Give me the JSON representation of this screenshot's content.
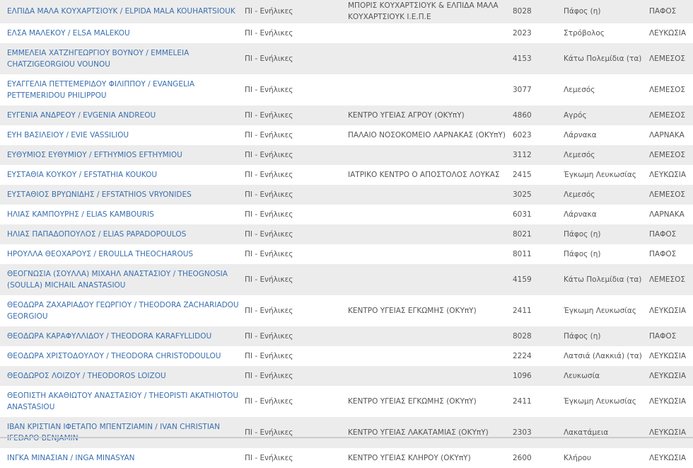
{
  "table": {
    "rows": [
      {
        "name": "ΕΛΠΙΔΑ ΜΑΛΑ ΚΟΥΧΑΡΤΣΙΟΥΚ / ELPIDA MALA KOUHARTSIOUK",
        "category": "ΠΙ - Ενήλικες",
        "facility": "ΜΠΟΡΙΣ ΚΟΥΧΑΡΤΣΙΟΥΚ & ΕΛΠΙΔΑ ΜΑΛΑ ΚΟΥΧΑΡΤΣΙΟΥΚ Ι.Ε.Π.Ε",
        "code": "8028",
        "city": "Πάφος (η)",
        "district": "ΠΑΦΟΣ"
      },
      {
        "name": "ΕΛΣΑ ΜΑΛΕΚΟΥ / ELSA MALEKOU",
        "category": "ΠΙ - Ενήλικες",
        "facility": "",
        "code": "2023",
        "city": "Στρόβολος",
        "district": "ΛΕΥΚΩΣΙΑ"
      },
      {
        "name": "ΕΜΜΕΛΕΙΑ ΧΑΤΖΗΓΕΩΡΓΙΟΥ ΒΟΥΝΟΥ / EMMELEIA CHATZIGEORGIOU VOUNOU",
        "category": "ΠΙ - Ενήλικες",
        "facility": "",
        "code": "4153",
        "city": "Κάτω Πολεμίδια (τα)",
        "district": "ΛΕΜΕΣΟΣ"
      },
      {
        "name": "ΕΥΑΓΓΕΛΙΑ ΠΕΤΤΕΜΕΡΙΔΟΥ ΦΙΛΙΠΠΟΥ / EVANGELIA PETTEMERIDOU PHILIPPOU",
        "category": "ΠΙ - Ενήλικες",
        "facility": "",
        "code": "3077",
        "city": "Λεμεσός",
        "district": "ΛΕΜΕΣΟΣ"
      },
      {
        "name": "ΕΥΓΕΝΙΑ ΑΝΔΡΕΟΥ / EVGENIA ANDREOU",
        "category": "ΠΙ - Ενήλικες",
        "facility": "ΚΕΝΤΡΟ ΥΓΕΙΑΣ ΑΓΡΟΥ (ΟΚΥπΥ)",
        "code": "4860",
        "city": "Αγρός",
        "district": "ΛΕΜΕΣΟΣ"
      },
      {
        "name": "ΕΥΗ ΒΑΣΙΛΕΙΟΥ / EVIE VASSILIOU",
        "category": "ΠΙ - Ενήλικες",
        "facility": "ΠΑΛΑΙΟ ΝΟΣΟΚΟΜΕΙΟ ΛΑΡΝΑΚΑΣ (ΟΚΥπΥ)",
        "code": "6023",
        "city": "Λάρνακα",
        "district": "ΛΑΡΝΑΚΑ"
      },
      {
        "name": "ΕΥΘΥΜΙΟΣ ΕΥΘΥΜΙΟΥ / EFTHYMIOS EFTHYMIOU",
        "category": "ΠΙ - Ενήλικες",
        "facility": "",
        "code": "3112",
        "city": "Λεμεσός",
        "district": "ΛΕΜΕΣΟΣ"
      },
      {
        "name": "ΕΥΣΤΑΘΙΑ ΚΟΥΚΟΥ / EFSTATHIA KOUKOU",
        "category": "ΠΙ - Ενήλικες",
        "facility": "ΙΑΤΡΙΚΟ ΚΕΝΤΡΟ Ο ΑΠΟΣΤΟΛΟΣ ΛΟΥΚΑΣ",
        "code": "2415",
        "city": "Έγκωμη Λευκωσίας",
        "district": "ΛΕΥΚΩΣΙΑ"
      },
      {
        "name": "ΕΥΣΤΑΘΙΟΣ ΒΡΥΩΝΙΔΗΣ / EFSTATHIOS VRYONIDES",
        "category": "ΠΙ - Ενήλικες",
        "facility": "",
        "code": "3025",
        "city": "Λεμεσός",
        "district": "ΛΕΜΕΣΟΣ"
      },
      {
        "name": "ΗΛΙΑΣ ΚΑΜΠΟΥΡΗΣ / ELIAS KAMBOURIS",
        "category": "ΠΙ - Ενήλικες",
        "facility": "",
        "code": "6031",
        "city": "Λάρνακα",
        "district": "ΛΑΡΝΑΚΑ"
      },
      {
        "name": "ΗΛΙΑΣ ΠΑΠΑΔΟΠΟΥΛΟΣ / ELIAS PAPADOPOULOS",
        "category": "ΠΙ - Ενήλικες",
        "facility": "",
        "code": "8021",
        "city": "Πάφος (η)",
        "district": "ΠΑΦΟΣ"
      },
      {
        "name": "ΗΡΟΥΛΛΑ ΘΕΟΧΑΡΟΥΣ / EROULLA THEOCHAROUS",
        "category": "ΠΙ - Ενήλικες",
        "facility": "",
        "code": "8011",
        "city": "Πάφος (η)",
        "district": "ΠΑΦΟΣ"
      },
      {
        "name": "ΘΕΟΓΝΩΣΙΑ (ΣΟΥΛΛΑ) ΜΙΧΑΗΛ ΑΝΑΣΤΑΣΙΟΥ / THEOGNOSIA (SOULLA) MICHAIL ANASTASIOU",
        "category": "ΠΙ - Ενήλικες",
        "facility": "",
        "code": "4159",
        "city": "Κάτω Πολεμίδια (τα)",
        "district": "ΛΕΜΕΣΟΣ"
      },
      {
        "name": "ΘΕΟΔΩΡΑ ΖΑΧΑΡΙΑΔΟΥ ΓΕΩΡΓΙΟΥ / THEODORA ZACHARIADOU GEORGIOU",
        "category": "ΠΙ - Ενήλικες",
        "facility": "ΚΕΝΤΡΟ ΥΓΕΙΑΣ ΕΓΚΩΜΗΣ (ΟΚΥπΥ)",
        "code": "2411",
        "city": "Έγκωμη Λευκωσίας",
        "district": "ΛΕΥΚΩΣΙΑ"
      },
      {
        "name": "ΘΕΟΔΩΡΑ ΚΑΡΑΦΥΛΛΙΔΟΥ / THEODORA KARAFYLLIDOU",
        "category": "ΠΙ - Ενήλικες",
        "facility": "",
        "code": "8028",
        "city": "Πάφος (η)",
        "district": "ΠΑΦΟΣ"
      },
      {
        "name": "ΘΕΟΔΩΡΑ ΧΡΙΣΤΟΔΟΥΛΟΥ / THEODORA CHRISTODOULOU",
        "category": "ΠΙ - Ενήλικες",
        "facility": "",
        "code": "2224",
        "city": "Λατσιά (Λακκιά) (τα)",
        "district": "ΛΕΥΚΩΣΙΑ"
      },
      {
        "name": "ΘΕΟΔΩΡΟΣ ΛΟΙΖΟΥ / THEODOROS LOIZOU",
        "category": "ΠΙ - Ενήλικες",
        "facility": "",
        "code": "1096",
        "city": "Λευκωσία",
        "district": "ΛΕΥΚΩΣΙΑ"
      },
      {
        "name": "ΘΕΟΠΙΣΤΗ ΑΚΑΘΙΩΤΟΥ ΑΝΑΣΤΑΣΙΟΥ / THEOPISTI AKATHIOTOU ANASTASIOU",
        "category": "ΠΙ - Ενήλικες",
        "facility": "ΚΕΝΤΡΟ ΥΓΕΙΑΣ ΕΓΚΩΜΗΣ (ΟΚΥπΥ)",
        "code": "2411",
        "city": "Έγκωμη Λευκωσίας",
        "district": "ΛΕΥΚΩΣΙΑ"
      },
      {
        "name": "ΙΒΑΝ ΚΡΙΣΤΙΑΝ ΙΦΕΤΑΠΟ ΜΠΕΝΤΖΙΑΜΙΝ / IVAN CHRISTIAN IFEDAPO BENJAMIN",
        "category": "ΠΙ - Ενήλικες",
        "facility": "ΚΕΝΤΡΟ ΥΓΕΙΑΣ ΛΑΚΑΤΑΜΙΑΣ (ΟΚΥπΥ)",
        "code": "2303",
        "city": "Λακατάμεια",
        "district": "ΛΕΥΚΩΣΙΑ"
      },
      {
        "name": "ΙΝΓΚΑ ΜΙΝΑΣΙΑΝ / INGA MINASYAN",
        "category": "ΠΙ - Ενήλικες",
        "facility": "ΚΕΝΤΡΟ ΥΓΕΙΑΣ ΚΛΗΡΟΥ (ΟΚΥπΥ)",
        "code": "2600",
        "city": "Κλήρου",
        "district": "ΛΕΥΚΩΣΙΑ"
      }
    ]
  },
  "colors": {
    "link": "#3a6fb0",
    "text": "#555555",
    "stripe": "#ececec"
  }
}
